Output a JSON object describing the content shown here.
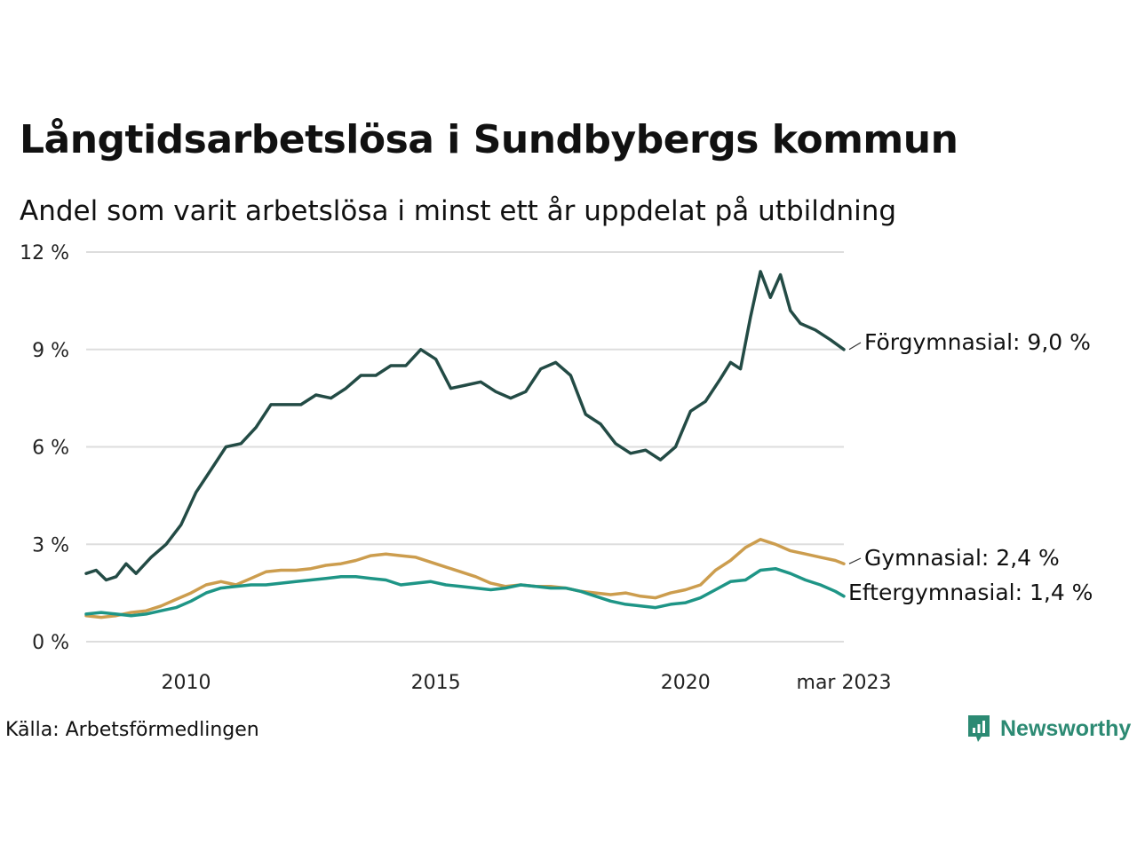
{
  "title": "Långtidsarbetslösa i Sundbybergs kommun",
  "subtitle": "Andel som varit arbetslösa i minst ett år uppdelat på utbildning",
  "source": "Källa: Arbetsförmedlingen",
  "brand": "Newsworthy",
  "colors": {
    "brand": "#2c8a73",
    "grid": "#dddddd"
  },
  "chart_data": {
    "type": "line",
    "ylim": [
      0,
      12
    ],
    "yticks": [
      {
        "value": 0,
        "label": "0 %"
      },
      {
        "value": 3,
        "label": "3 %"
      },
      {
        "value": 6,
        "label": "6 %"
      },
      {
        "value": 9,
        "label": "9 %"
      },
      {
        "value": 12,
        "label": "12 %"
      }
    ],
    "xlim": [
      2008.0,
      2023.17
    ],
    "xticks": [
      {
        "value": 2010.0,
        "label": "2010"
      },
      {
        "value": 2015.0,
        "label": "2015"
      },
      {
        "value": 2020.0,
        "label": "2020"
      },
      {
        "value": 2023.17,
        "label": "mar 2023"
      }
    ],
    "grid": true,
    "legend": "end-of-line labels",
    "series": [
      {
        "name": "Förgymnasial",
        "end_label": "Förgymnasial: 9,0 %",
        "color": "#234b45",
        "x": [
          2008.0,
          2008.2,
          2008.4,
          2008.6,
          2008.8,
          2009.0,
          2009.3,
          2009.6,
          2009.9,
          2010.2,
          2010.5,
          2010.8,
          2011.1,
          2011.4,
          2011.7,
          2012.0,
          2012.3,
          2012.6,
          2012.9,
          2013.2,
          2013.5,
          2013.8,
          2014.1,
          2014.4,
          2014.7,
          2015.0,
          2015.3,
          2015.6,
          2015.9,
          2016.2,
          2016.5,
          2016.8,
          2017.1,
          2017.4,
          2017.7,
          2018.0,
          2018.3,
          2018.6,
          2018.9,
          2019.2,
          2019.5,
          2019.8,
          2020.1,
          2020.4,
          2020.7,
          2020.9,
          2021.1,
          2021.3,
          2021.5,
          2021.7,
          2021.9,
          2022.1,
          2022.3,
          2022.6,
          2022.9,
          2023.17
        ],
        "y": [
          2.1,
          2.2,
          1.9,
          2.0,
          2.4,
          2.1,
          2.6,
          3.0,
          3.6,
          4.6,
          5.3,
          6.0,
          6.1,
          6.6,
          7.3,
          7.3,
          7.3,
          7.6,
          7.5,
          7.8,
          8.2,
          8.2,
          8.5,
          8.5,
          9.0,
          8.7,
          7.8,
          7.9,
          8.0,
          7.7,
          7.5,
          7.7,
          8.4,
          8.6,
          8.2,
          7.0,
          6.7,
          6.1,
          5.8,
          5.9,
          5.6,
          6.0,
          7.1,
          7.4,
          8.1,
          8.6,
          8.4,
          10.0,
          11.4,
          10.6,
          11.3,
          10.2,
          9.8,
          9.6,
          9.3,
          9.0
        ]
      },
      {
        "name": "Gymnasial",
        "end_label": "Gymnasial: 2,4 %",
        "color": "#cc9d4e",
        "x": [
          2008.0,
          2008.3,
          2008.6,
          2008.9,
          2009.2,
          2009.5,
          2009.8,
          2010.1,
          2010.4,
          2010.7,
          2011.0,
          2011.3,
          2011.6,
          2011.9,
          2012.2,
          2012.5,
          2012.8,
          2013.1,
          2013.4,
          2013.7,
          2014.0,
          2014.3,
          2014.6,
          2014.9,
          2015.2,
          2015.5,
          2015.8,
          2016.1,
          2016.4,
          2016.7,
          2017.0,
          2017.3,
          2017.6,
          2017.9,
          2018.2,
          2018.5,
          2018.8,
          2019.1,
          2019.4,
          2019.7,
          2020.0,
          2020.3,
          2020.6,
          2020.9,
          2021.2,
          2021.5,
          2021.8,
          2022.1,
          2022.4,
          2022.7,
          2023.0,
          2023.17
        ],
        "y": [
          0.8,
          0.75,
          0.8,
          0.9,
          0.95,
          1.1,
          1.3,
          1.5,
          1.75,
          1.85,
          1.75,
          1.95,
          2.15,
          2.2,
          2.2,
          2.25,
          2.35,
          2.4,
          2.5,
          2.65,
          2.7,
          2.65,
          2.6,
          2.45,
          2.3,
          2.15,
          2.0,
          1.8,
          1.7,
          1.75,
          1.7,
          1.7,
          1.65,
          1.55,
          1.5,
          1.45,
          1.5,
          1.4,
          1.35,
          1.5,
          1.6,
          1.75,
          2.2,
          2.5,
          2.9,
          3.15,
          3.0,
          2.8,
          2.7,
          2.6,
          2.5,
          2.4
        ]
      },
      {
        "name": "Eftergymnasial",
        "end_label": "Eftergymnasial: 1,4 %",
        "color": "#1e9586",
        "x": [
          2008.0,
          2008.3,
          2008.6,
          2008.9,
          2009.2,
          2009.5,
          2009.8,
          2010.1,
          2010.4,
          2010.7,
          2011.0,
          2011.3,
          2011.6,
          2011.9,
          2012.2,
          2012.5,
          2012.8,
          2013.1,
          2013.4,
          2013.7,
          2014.0,
          2014.3,
          2014.6,
          2014.9,
          2015.2,
          2015.5,
          2015.8,
          2016.1,
          2016.4,
          2016.7,
          2017.0,
          2017.3,
          2017.6,
          2017.9,
          2018.2,
          2018.5,
          2018.8,
          2019.1,
          2019.4,
          2019.7,
          2020.0,
          2020.3,
          2020.6,
          2020.9,
          2021.2,
          2021.5,
          2021.8,
          2022.1,
          2022.4,
          2022.7,
          2023.0,
          2023.17
        ],
        "y": [
          0.85,
          0.9,
          0.85,
          0.8,
          0.85,
          0.95,
          1.05,
          1.25,
          1.5,
          1.65,
          1.7,
          1.75,
          1.75,
          1.8,
          1.85,
          1.9,
          1.95,
          2.0,
          2.0,
          1.95,
          1.9,
          1.75,
          1.8,
          1.85,
          1.75,
          1.7,
          1.65,
          1.6,
          1.65,
          1.75,
          1.7,
          1.65,
          1.65,
          1.55,
          1.4,
          1.25,
          1.15,
          1.1,
          1.05,
          1.15,
          1.2,
          1.35,
          1.6,
          1.85,
          1.9,
          2.2,
          2.25,
          2.1,
          1.9,
          1.75,
          1.55,
          1.4
        ]
      }
    ]
  }
}
